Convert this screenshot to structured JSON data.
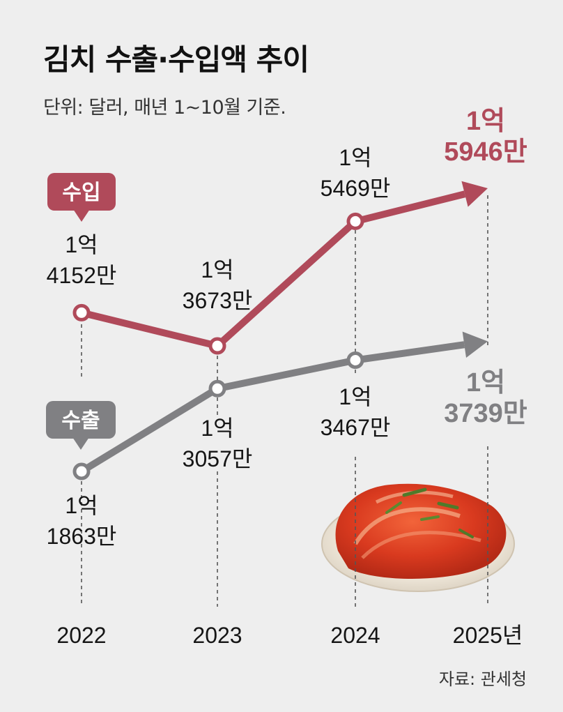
{
  "header": {
    "title": "김치 수출·수입액 추이",
    "subtitle": "단위: 달러, 매년 1~10월 기준."
  },
  "footer": {
    "source": "자료: 관세청"
  },
  "colors": {
    "import": "#b04a5a",
    "export": "#808083",
    "background": "#eeeeee"
  },
  "chart_data": {
    "type": "line",
    "categories": [
      "2022",
      "2023",
      "2024",
      "2025년"
    ],
    "series": [
      {
        "name": "수입",
        "values": [
          141520000,
          136730000,
          154690000,
          159460000
        ],
        "labels": [
          [
            "1억",
            "4152만"
          ],
          [
            "1억",
            "3673만"
          ],
          [
            "1억",
            "5469만"
          ],
          [
            "1억",
            "5946만"
          ]
        ]
      },
      {
        "name": "수출",
        "values": [
          118630000,
          130570000,
          134670000,
          137390000
        ],
        "labels": [
          [
            "1억",
            "1863만"
          ],
          [
            "1억",
            "3057만"
          ],
          [
            "1억",
            "3467만"
          ],
          [
            "1억",
            "3739만"
          ]
        ]
      }
    ],
    "image": "kimchi-bowl"
  }
}
